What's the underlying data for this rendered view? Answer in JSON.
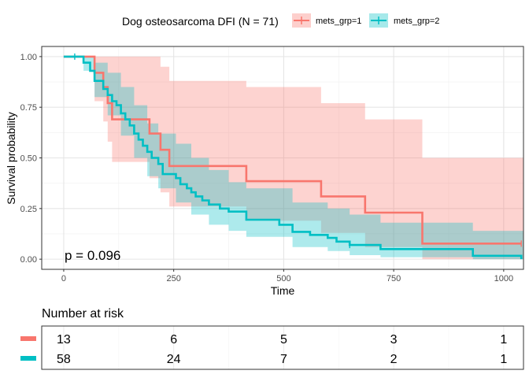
{
  "chart_data": {
    "type": "line",
    "subtype": "kaplan-meier",
    "legend": {
      "title": "Dog osteosarcoma DFI (N = 71)",
      "position": "top",
      "entries": [
        "mets_grp=1",
        "mets_grp=2"
      ]
    },
    "xlabel": "Time",
    "ylabel": "Survival probability",
    "xlim": [
      -50,
      1045
    ],
    "ylim": [
      -0.05,
      1.05
    ],
    "x_ticks": [
      0,
      250,
      500,
      750,
      1000
    ],
    "x_tick_labels": [
      "0",
      "250",
      "500",
      "750",
      "1000"
    ],
    "y_ticks": [
      0,
      0.25,
      0.5,
      0.75,
      1
    ],
    "y_tick_labels": [
      "0.00",
      "0.25",
      "0.50",
      "0.75",
      "1.00"
    ],
    "grid": true,
    "annotation": "p = 0.096",
    "series": [
      {
        "name": "mets_grp=1",
        "color": "#F8766D",
        "steps": [
          [
            0,
            1.0
          ],
          [
            70,
            0.92
          ],
          [
            90,
            0.85
          ],
          [
            100,
            0.77
          ],
          [
            110,
            0.69
          ],
          [
            195,
            0.62
          ],
          [
            220,
            0.54
          ],
          [
            240,
            0.46
          ],
          [
            415,
            0.385
          ],
          [
            585,
            0.31
          ],
          [
            685,
            0.23
          ],
          [
            815,
            0.077
          ],
          [
            1040,
            0.077
          ]
        ],
        "ci": [
          [
            0,
            1,
            1
          ],
          [
            70,
            0.78,
            1
          ],
          [
            90,
            0.68,
            1
          ],
          [
            100,
            0.58,
            1
          ],
          [
            110,
            0.48,
            1
          ],
          [
            195,
            0.4,
            1
          ],
          [
            220,
            0.33,
            0.95
          ],
          [
            240,
            0.26,
            0.88
          ],
          [
            415,
            0.19,
            0.85
          ],
          [
            585,
            0.13,
            0.77
          ],
          [
            685,
            0.06,
            0.69
          ],
          [
            815,
            0.0,
            0.5
          ],
          [
            1040,
            0.0,
            0.5
          ]
        ],
        "censor_times": [
          1040
        ]
      },
      {
        "name": "mets_grp=2",
        "color": "#00BFC4",
        "steps": [
          [
            0,
            1.0
          ],
          [
            25,
            1.0
          ],
          [
            45,
            0.97
          ],
          [
            60,
            0.93
          ],
          [
            70,
            0.88
          ],
          [
            90,
            0.84
          ],
          [
            100,
            0.81
          ],
          [
            110,
            0.78
          ],
          [
            120,
            0.76
          ],
          [
            130,
            0.72
          ],
          [
            140,
            0.69
          ],
          [
            150,
            0.66
          ],
          [
            160,
            0.62
          ],
          [
            170,
            0.59
          ],
          [
            180,
            0.56
          ],
          [
            190,
            0.53
          ],
          [
            200,
            0.5
          ],
          [
            215,
            0.47
          ],
          [
            225,
            0.42
          ],
          [
            255,
            0.4
          ],
          [
            265,
            0.37
          ],
          [
            280,
            0.35
          ],
          [
            290,
            0.33
          ],
          [
            300,
            0.31
          ],
          [
            315,
            0.29
          ],
          [
            330,
            0.27
          ],
          [
            355,
            0.25
          ],
          [
            375,
            0.235
          ],
          [
            415,
            0.195
          ],
          [
            490,
            0.17
          ],
          [
            520,
            0.135
          ],
          [
            560,
            0.12
          ],
          [
            600,
            0.105
          ],
          [
            620,
            0.087
          ],
          [
            650,
            0.07
          ],
          [
            720,
            0.05
          ],
          [
            930,
            0.017
          ],
          [
            1040,
            0.0
          ]
        ],
        "ci": [
          [
            0,
            1,
            1
          ],
          [
            45,
            0.93,
            1
          ],
          [
            70,
            0.8,
            0.97
          ],
          [
            100,
            0.71,
            0.92
          ],
          [
            130,
            0.61,
            0.85
          ],
          [
            160,
            0.5,
            0.76
          ],
          [
            190,
            0.41,
            0.67
          ],
          [
            215,
            0.35,
            0.62
          ],
          [
            255,
            0.28,
            0.57
          ],
          [
            290,
            0.22,
            0.5
          ],
          [
            330,
            0.17,
            0.44
          ],
          [
            375,
            0.14,
            0.38
          ],
          [
            415,
            0.11,
            0.35
          ],
          [
            520,
            0.06,
            0.28
          ],
          [
            600,
            0.04,
            0.25
          ],
          [
            650,
            0.02,
            0.22
          ],
          [
            720,
            0.01,
            0.18
          ],
          [
            930,
            0.0,
            0.14
          ],
          [
            1040,
            0.0,
            0.14
          ]
        ],
        "censor_times": [
          25,
          650
        ]
      }
    ],
    "risk_table": {
      "title": "Number at risk",
      "times": [
        0,
        250,
        500,
        750,
        1000
      ],
      "rows": [
        {
          "name": "mets_grp=1",
          "color": "#F8766D",
          "values": [
            "13",
            "6",
            "5",
            "3",
            "1"
          ]
        },
        {
          "name": "mets_grp=2",
          "color": "#00BFC4",
          "values": [
            "58",
            "24",
            "7",
            "2",
            "1"
          ]
        }
      ]
    }
  }
}
